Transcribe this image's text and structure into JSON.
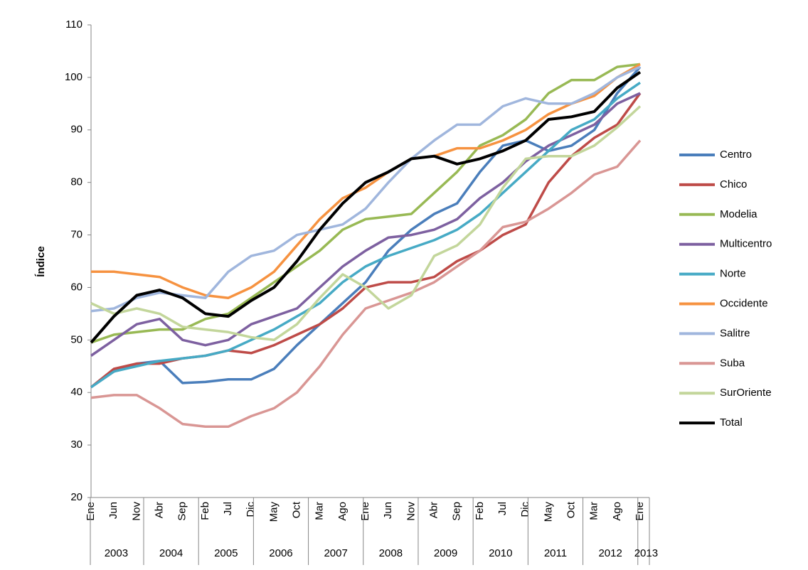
{
  "chart_data": {
    "type": "line",
    "y_label": "Índice",
    "categories": [
      "Ene",
      "Jun",
      "Nov",
      "Abr",
      "Sep",
      "Feb",
      "Jul",
      "Dic",
      "May",
      "Oct",
      "Mar",
      "Ago",
      "Ene",
      "Jun",
      "Nov",
      "Abr",
      "Sep",
      "Feb",
      "Jul",
      "Dic",
      "May",
      "Oct",
      "Mar",
      "Ago",
      "Ene"
    ],
    "year_labels": [
      "2003",
      "2004",
      "2005",
      "2006",
      "2007",
      "2008",
      "2009",
      "2010",
      "2011",
      "2012",
      "2013"
    ],
    "ylim": [
      20,
      110
    ],
    "yticks": [
      20,
      30,
      40,
      50,
      60,
      70,
      80,
      90,
      100,
      110
    ],
    "legend": "right",
    "series": [
      {
        "name": "Centro",
        "color": "#4a7ebb",
        "values": [
          41,
          44,
          45.5,
          46,
          41.8,
          42,
          42.5,
          42.5,
          44.5,
          49,
          53,
          57,
          61,
          67,
          71,
          74,
          76,
          82,
          87,
          88,
          86,
          87,
          90,
          97,
          102
        ]
      },
      {
        "name": "Chico",
        "color": "#be4b48",
        "values": [
          41,
          44.5,
          45.5,
          45.5,
          46.5,
          47,
          48,
          47.5,
          49,
          51,
          53,
          56,
          60,
          61,
          61,
          62,
          65,
          67,
          70,
          72,
          80,
          85,
          88.5,
          91,
          97
        ]
      },
      {
        "name": "Modelia",
        "color": "#98b954",
        "values": [
          49.5,
          51,
          51.5,
          52,
          52,
          54,
          55,
          58,
          61,
          64,
          67,
          71,
          73,
          73.5,
          74,
          78,
          82,
          87,
          89,
          92,
          97,
          99.5,
          99.5,
          102,
          102.5
        ]
      },
      {
        "name": "Multicentro",
        "color": "#7d60a0",
        "values": [
          47,
          50,
          53,
          54,
          50,
          49,
          50,
          53,
          54.5,
          56,
          60,
          64,
          67,
          69.5,
          70,
          71,
          73,
          77,
          80,
          84,
          87,
          89,
          91,
          95,
          97
        ]
      },
      {
        "name": "Norte",
        "color": "#46aac5",
        "values": [
          41,
          44,
          45,
          46,
          46.5,
          47,
          48,
          50,
          52,
          54.5,
          57,
          61,
          64,
          66,
          67.5,
          69,
          71,
          74,
          78,
          82,
          86,
          90,
          92,
          96,
          99
        ]
      },
      {
        "name": "Occidente",
        "color": "#f69240",
        "values": [
          63,
          63,
          62.5,
          62,
          60,
          58.5,
          58,
          60,
          63,
          68,
          73,
          77,
          79,
          82,
          84.5,
          85,
          86.5,
          86.5,
          88,
          90,
          93,
          95,
          96.5,
          100,
          102.5
        ]
      },
      {
        "name": "Salitre",
        "color": "#a0b6dd",
        "values": [
          55.5,
          56,
          58,
          59,
          58.5,
          58,
          63,
          66,
          67,
          70,
          71,
          72,
          75,
          80,
          84.5,
          88,
          91,
          91,
          94.5,
          96,
          95,
          95,
          97,
          100,
          102
        ]
      },
      {
        "name": "Suba",
        "color": "#d99694",
        "values": [
          39,
          39.5,
          39.5,
          37,
          34,
          33.5,
          33.5,
          35.5,
          37,
          40,
          45,
          51,
          56,
          57.5,
          59,
          61,
          64,
          67,
          71.5,
          72.5,
          75,
          78,
          81.5,
          83,
          88
        ]
      },
      {
        "name": "SurOriente",
        "color": "#c3d69b",
        "values": [
          57,
          55,
          56,
          55,
          52.5,
          52,
          51.5,
          50.5,
          50,
          53,
          58,
          62.5,
          60,
          56,
          58.5,
          66,
          68,
          72,
          79,
          84.5,
          85,
          85,
          87,
          90.5,
          94.5
        ]
      },
      {
        "name": "Total",
        "color": "#000000",
        "values": [
          49.5,
          54.5,
          58.5,
          59.5,
          58,
          55,
          54.5,
          57.5,
          60,
          65,
          71,
          76,
          80,
          82,
          84.5,
          85,
          83.5,
          84.5,
          86,
          88,
          92,
          92.5,
          93.5,
          98,
          101
        ]
      }
    ]
  }
}
